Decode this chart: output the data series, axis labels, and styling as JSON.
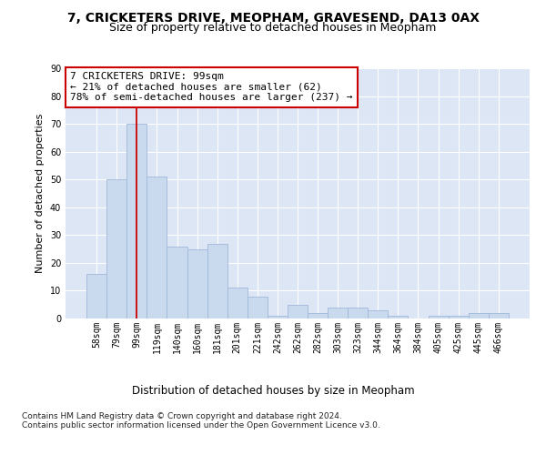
{
  "title": "7, CRICKETERS DRIVE, MEOPHAM, GRAVESEND, DA13 0AX",
  "subtitle": "Size of property relative to detached houses in Meopham",
  "xlabel": "Distribution of detached houses by size in Meopham",
  "ylabel": "Number of detached properties",
  "categories": [
    "58sqm",
    "79sqm",
    "99sqm",
    "119sqm",
    "140sqm",
    "160sqm",
    "181sqm",
    "201sqm",
    "221sqm",
    "242sqm",
    "262sqm",
    "282sqm",
    "303sqm",
    "323sqm",
    "344sqm",
    "364sqm",
    "384sqm",
    "405sqm",
    "425sqm",
    "445sqm",
    "466sqm"
  ],
  "values": [
    16,
    50,
    70,
    51,
    26,
    25,
    27,
    11,
    8,
    1,
    5,
    2,
    4,
    4,
    3,
    1,
    0,
    1,
    1,
    2,
    2
  ],
  "bar_color": "#c9d9ee",
  "bar_edge_color": "#a0b8d8",
  "highlight_index": 2,
  "highlight_line_color": "#cc0000",
  "annotation_text": "7 CRICKETERS DRIVE: 99sqm\n← 21% of detached houses are smaller (62)\n78% of semi-detached houses are larger (237) →",
  "annotation_box_color": "#ffffff",
  "annotation_box_edge": "#cc0000",
  "ylim": [
    0,
    90
  ],
  "yticks": [
    0,
    10,
    20,
    30,
    40,
    50,
    60,
    70,
    80,
    90
  ],
  "bg_color": "#dce6f5",
  "grid_color": "#ffffff",
  "footer": "Contains HM Land Registry data © Crown copyright and database right 2024.\nContains public sector information licensed under the Open Government Licence v3.0.",
  "title_fontsize": 10,
  "subtitle_fontsize": 9,
  "xlabel_fontsize": 8.5,
  "ylabel_fontsize": 8,
  "tick_fontsize": 7,
  "annotation_fontsize": 8,
  "footer_fontsize": 6.5
}
